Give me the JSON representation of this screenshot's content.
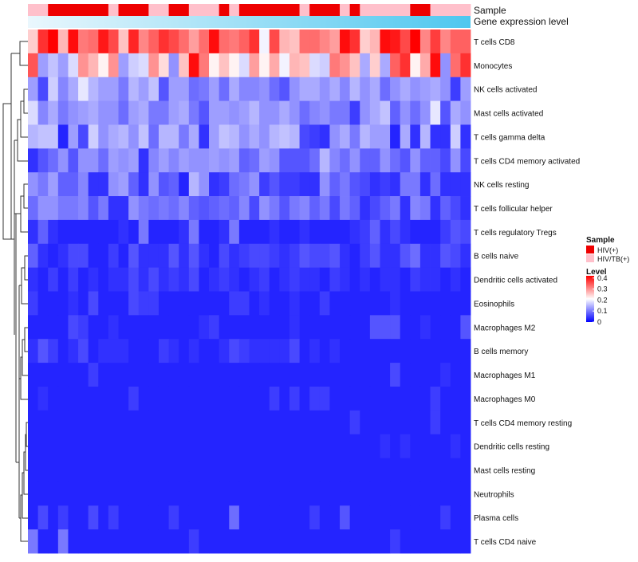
{
  "chart_data": {
    "type": "heatmap",
    "annotation_labels": [
      "Sample",
      "Gene expression level"
    ],
    "rows": [
      "T cells CD8",
      "Monocytes",
      "NK cells activated",
      "Mast cells activated",
      "T cells gamma delta",
      "T cells CD4 memory activated",
      "NK cells resting",
      "T cells follicular helper",
      "T cells regulatory  Tregs",
      "B cells naive",
      "Dendritic cells activated",
      "Eosinophils",
      "Macrophages M2",
      "B cells memory",
      "Macrophages M1",
      "Macrophages M0",
      "T cells CD4 memory resting",
      "Dendritic cells resting",
      "Mast cells resting",
      "Neutrophils",
      "Plasma cells",
      "T cells CD4 naive"
    ],
    "n_columns": 44,
    "sample_groups": [
      "HIV/TB(+)",
      "HIV/TB(+)",
      "HIV(+)",
      "HIV(+)",
      "HIV(+)",
      "HIV(+)",
      "HIV(+)",
      "HIV(+)",
      "HIV/TB(+)",
      "HIV(+)",
      "HIV(+)",
      "HIV(+)",
      "HIV/TB(+)",
      "HIV/TB(+)",
      "HIV(+)",
      "HIV(+)",
      "HIV/TB(+)",
      "HIV/TB(+)",
      "HIV/TB(+)",
      "HIV(+)",
      "HIV/TB(+)",
      "HIV(+)",
      "HIV(+)",
      "HIV(+)",
      "HIV(+)",
      "HIV(+)",
      "HIV(+)",
      "HIV/TB(+)",
      "HIV(+)",
      "HIV(+)",
      "HIV(+)",
      "HIV/TB(+)",
      "HIV(+)",
      "HIV/TB(+)",
      "HIV/TB(+)",
      "HIV/TB(+)",
      "HIV/TB(+)",
      "HIV/TB(+)",
      "HIV(+)",
      "HIV(+)",
      "HIV/TB(+)",
      "HIV/TB(+)",
      "HIV/TB(+)",
      "HIV/TB(+)"
    ],
    "values": [
      [
        0.25,
        0.38,
        0.42,
        0.27,
        0.41,
        0.32,
        0.33,
        0.4,
        0.36,
        0.26,
        0.39,
        0.31,
        0.34,
        0.38,
        0.36,
        0.33,
        0.29,
        0.33,
        0.41,
        0.33,
        0.32,
        0.34,
        0.38,
        0.2,
        0.36,
        0.27,
        0.26,
        0.33,
        0.33,
        0.31,
        0.29,
        0.41,
        0.38,
        0.25,
        0.27,
        0.41,
        0.4,
        0.36,
        0.42,
        0.31,
        0.37,
        0.31,
        0.34,
        0.34
      ],
      [
        0.35,
        0.13,
        0.16,
        0.13,
        0.18,
        0.3,
        0.27,
        0.22,
        0.3,
        0.13,
        0.17,
        0.18,
        0.3,
        0.24,
        0.12,
        0.26,
        0.41,
        0.32,
        0.22,
        0.26,
        0.22,
        0.18,
        0.29,
        0.22,
        0.28,
        0.2,
        0.27,
        0.26,
        0.18,
        0.17,
        0.32,
        0.3,
        0.26,
        0.14,
        0.25,
        0.14,
        0.34,
        0.38,
        0.22,
        0.28,
        0.41,
        0.12,
        0.33,
        0.38
      ],
      [
        0.13,
        0.06,
        0.17,
        0.11,
        0.14,
        0.19,
        0.15,
        0.13,
        0.13,
        0.1,
        0.15,
        0.13,
        0.16,
        0.07,
        0.13,
        0.13,
        0.09,
        0.1,
        0.13,
        0.09,
        0.14,
        0.11,
        0.11,
        0.12,
        0.09,
        0.07,
        0.12,
        0.14,
        0.14,
        0.12,
        0.14,
        0.11,
        0.15,
        0.12,
        0.14,
        0.09,
        0.12,
        0.14,
        0.12,
        0.13,
        0.14,
        0.12,
        0.05,
        0.13
      ],
      [
        0.18,
        0.11,
        0.14,
        0.1,
        0.12,
        0.13,
        0.14,
        0.12,
        0.12,
        0.09,
        0.13,
        0.14,
        0.1,
        0.1,
        0.13,
        0.14,
        0.1,
        0.07,
        0.13,
        0.13,
        0.12,
        0.13,
        0.15,
        0.12,
        0.12,
        0.14,
        0.12,
        0.09,
        0.11,
        0.12,
        0.1,
        0.1,
        0.05,
        0.12,
        0.14,
        0.16,
        0.08,
        0.12,
        0.09,
        0.12,
        0.19,
        0.07,
        0.14,
        0.12
      ],
      [
        0.15,
        0.16,
        0.16,
        0.03,
        0.13,
        0.06,
        0.17,
        0.12,
        0.14,
        0.15,
        0.12,
        0.16,
        0.09,
        0.15,
        0.15,
        0.1,
        0.14,
        0.04,
        0.13,
        0.16,
        0.15,
        0.12,
        0.14,
        0.12,
        0.15,
        0.16,
        0.15,
        0.06,
        0.05,
        0.04,
        0.12,
        0.14,
        0.1,
        0.15,
        0.13,
        0.13,
        0.03,
        0.14,
        0.04,
        0.15,
        0.04,
        0.04,
        0.17,
        0.04
      ],
      [
        0.04,
        0.07,
        0.09,
        0.12,
        0.07,
        0.12,
        0.12,
        0.09,
        0.13,
        0.12,
        0.13,
        0.04,
        0.11,
        0.13,
        0.11,
        0.13,
        0.12,
        0.12,
        0.13,
        0.12,
        0.13,
        0.08,
        0.09,
        0.13,
        0.12,
        0.07,
        0.07,
        0.07,
        0.09,
        0.15,
        0.11,
        0.09,
        0.12,
        0.08,
        0.08,
        0.12,
        0.09,
        0.07,
        0.12,
        0.08,
        0.08,
        0.06,
        0.12,
        0.06
      ],
      [
        0.12,
        0.1,
        0.13,
        0.08,
        0.08,
        0.11,
        0.04,
        0.04,
        0.12,
        0.13,
        0.08,
        0.04,
        0.12,
        0.07,
        0.08,
        0.03,
        0.15,
        0.12,
        0.04,
        0.05,
        0.09,
        0.1,
        0.12,
        0.05,
        0.07,
        0.05,
        0.05,
        0.04,
        0.04,
        0.12,
        0.08,
        0.1,
        0.07,
        0.06,
        0.04,
        0.05,
        0.04,
        0.1,
        0.1,
        0.04,
        0.09,
        0.04,
        0.04,
        0.04
      ],
      [
        0.09,
        0.12,
        0.12,
        0.1,
        0.1,
        0.11,
        0.07,
        0.1,
        0.04,
        0.04,
        0.12,
        0.1,
        0.09,
        0.1,
        0.09,
        0.11,
        0.08,
        0.07,
        0.08,
        0.09,
        0.08,
        0.11,
        0.06,
        0.12,
        0.1,
        0.07,
        0.1,
        0.11,
        0.08,
        0.1,
        0.06,
        0.1,
        0.08,
        0.04,
        0.06,
        0.08,
        0.1,
        0.04,
        0.11,
        0.1,
        0.04,
        0.08,
        0.06,
        0.04
      ],
      [
        0.04,
        0.08,
        0.04,
        0.03,
        0.03,
        0.03,
        0.03,
        0.03,
        0.03,
        0.04,
        0.03,
        0.1,
        0.03,
        0.03,
        0.03,
        0.04,
        0.1,
        0.03,
        0.03,
        0.04,
        0.1,
        0.03,
        0.03,
        0.03,
        0.04,
        0.03,
        0.03,
        0.04,
        0.03,
        0.03,
        0.03,
        0.03,
        0.04,
        0.05,
        0.08,
        0.04,
        0.06,
        0.04,
        0.03,
        0.03,
        0.03,
        0.05,
        0.07,
        0.06
      ],
      [
        0.08,
        0.04,
        0.03,
        0.04,
        0.06,
        0.06,
        0.03,
        0.03,
        0.05,
        0.03,
        0.07,
        0.04,
        0.04,
        0.04,
        0.07,
        0.04,
        0.07,
        0.04,
        0.03,
        0.06,
        0.04,
        0.05,
        0.06,
        0.06,
        0.05,
        0.04,
        0.05,
        0.07,
        0.06,
        0.06,
        0.07,
        0.04,
        0.03,
        0.05,
        0.07,
        0.04,
        0.04,
        0.07,
        0.09,
        0.04,
        0.04,
        0.07,
        0.06,
        0.04
      ],
      [
        0.04,
        0.03,
        0.05,
        0.03,
        0.05,
        0.03,
        0.04,
        0.03,
        0.04,
        0.04,
        0.06,
        0.04,
        0.06,
        0.04,
        0.05,
        0.04,
        0.06,
        0.03,
        0.04,
        0.05,
        0.04,
        0.03,
        0.04,
        0.05,
        0.03,
        0.04,
        0.05,
        0.04,
        0.04,
        0.03,
        0.05,
        0.04,
        0.03,
        0.04,
        0.03,
        0.04,
        0.04,
        0.03,
        0.05,
        0.04,
        0.04,
        0.03,
        0.04,
        0.03
      ],
      [
        0.05,
        0.03,
        0.03,
        0.03,
        0.04,
        0.03,
        0.06,
        0.03,
        0.03,
        0.03,
        0.06,
        0.05,
        0.05,
        0.03,
        0.03,
        0.03,
        0.03,
        0.03,
        0.03,
        0.03,
        0.05,
        0.05,
        0.03,
        0.04,
        0.03,
        0.03,
        0.04,
        0.03,
        0.03,
        0.05,
        0.03,
        0.03,
        0.03,
        0.03,
        0.03,
        0.03,
        0.04,
        0.03,
        0.03,
        0.03,
        0.03,
        0.03,
        0.03,
        0.03
      ],
      [
        0.03,
        0.03,
        0.03,
        0.03,
        0.06,
        0.05,
        0.03,
        0.03,
        0.04,
        0.03,
        0.03,
        0.03,
        0.03,
        0.03,
        0.03,
        0.03,
        0.03,
        0.04,
        0.05,
        0.03,
        0.03,
        0.03,
        0.03,
        0.03,
        0.03,
        0.03,
        0.04,
        0.03,
        0.03,
        0.03,
        0.03,
        0.03,
        0.03,
        0.03,
        0.07,
        0.07,
        0.07,
        0.03,
        0.03,
        0.04,
        0.03,
        0.03,
        0.03,
        0.07
      ],
      [
        0.04,
        0.07,
        0.05,
        0.03,
        0.04,
        0.06,
        0.03,
        0.04,
        0.04,
        0.04,
        0.03,
        0.03,
        0.03,
        0.05,
        0.04,
        0.03,
        0.04,
        0.03,
        0.03,
        0.04,
        0.06,
        0.05,
        0.04,
        0.04,
        0.04,
        0.04,
        0.06,
        0.03,
        0.04,
        0.03,
        0.04,
        0.03,
        0.03,
        0.03,
        0.03,
        0.03,
        0.03,
        0.03,
        0.03,
        0.03,
        0.03,
        0.03,
        0.03,
        0.03
      ],
      [
        0.03,
        0.03,
        0.03,
        0.03,
        0.03,
        0.03,
        0.05,
        0.03,
        0.03,
        0.03,
        0.03,
        0.03,
        0.03,
        0.03,
        0.03,
        0.03,
        0.03,
        0.03,
        0.03,
        0.03,
        0.03,
        0.03,
        0.03,
        0.03,
        0.03,
        0.03,
        0.03,
        0.03,
        0.03,
        0.03,
        0.03,
        0.03,
        0.03,
        0.03,
        0.03,
        0.03,
        0.06,
        0.03,
        0.03,
        0.03,
        0.03,
        0.04,
        0.03,
        0.03
      ],
      [
        0.03,
        0.04,
        0.03,
        0.03,
        0.03,
        0.03,
        0.03,
        0.03,
        0.03,
        0.03,
        0.05,
        0.03,
        0.03,
        0.03,
        0.03,
        0.03,
        0.03,
        0.03,
        0.03,
        0.03,
        0.03,
        0.03,
        0.03,
        0.03,
        0.05,
        0.03,
        0.05,
        0.03,
        0.05,
        0.05,
        0.03,
        0.03,
        0.03,
        0.03,
        0.03,
        0.03,
        0.03,
        0.03,
        0.03,
        0.03,
        0.05,
        0.03,
        0.03,
        0.03
      ],
      [
        0.03,
        0.03,
        0.03,
        0.03,
        0.03,
        0.03,
        0.03,
        0.03,
        0.03,
        0.03,
        0.03,
        0.03,
        0.03,
        0.03,
        0.03,
        0.03,
        0.03,
        0.03,
        0.03,
        0.03,
        0.03,
        0.03,
        0.03,
        0.03,
        0.03,
        0.03,
        0.03,
        0.03,
        0.03,
        0.03,
        0.03,
        0.03,
        0.05,
        0.03,
        0.03,
        0.03,
        0.03,
        0.03,
        0.03,
        0.03,
        0.05,
        0.03,
        0.03,
        0.03
      ],
      [
        0.03,
        0.03,
        0.03,
        0.03,
        0.03,
        0.03,
        0.03,
        0.03,
        0.03,
        0.03,
        0.03,
        0.03,
        0.03,
        0.03,
        0.03,
        0.03,
        0.03,
        0.03,
        0.03,
        0.03,
        0.03,
        0.03,
        0.03,
        0.03,
        0.03,
        0.03,
        0.03,
        0.03,
        0.03,
        0.03,
        0.03,
        0.03,
        0.03,
        0.03,
        0.03,
        0.04,
        0.03,
        0.04,
        0.03,
        0.03,
        0.03,
        0.03,
        0.04,
        0.03
      ],
      [
        0.03,
        0.03,
        0.03,
        0.03,
        0.03,
        0.03,
        0.03,
        0.03,
        0.03,
        0.03,
        0.03,
        0.03,
        0.03,
        0.03,
        0.03,
        0.03,
        0.03,
        0.03,
        0.03,
        0.03,
        0.03,
        0.03,
        0.03,
        0.03,
        0.03,
        0.03,
        0.03,
        0.03,
        0.03,
        0.03,
        0.03,
        0.03,
        0.03,
        0.03,
        0.03,
        0.03,
        0.03,
        0.03,
        0.03,
        0.03,
        0.03,
        0.03,
        0.03,
        0.03
      ],
      [
        0.03,
        0.03,
        0.03,
        0.03,
        0.03,
        0.03,
        0.03,
        0.03,
        0.03,
        0.03,
        0.03,
        0.03,
        0.03,
        0.03,
        0.03,
        0.03,
        0.03,
        0.03,
        0.03,
        0.03,
        0.03,
        0.03,
        0.03,
        0.03,
        0.03,
        0.03,
        0.03,
        0.03,
        0.03,
        0.03,
        0.03,
        0.03,
        0.03,
        0.03,
        0.03,
        0.03,
        0.03,
        0.03,
        0.03,
        0.03,
        0.03,
        0.03,
        0.03,
        0.03
      ],
      [
        0.03,
        0.06,
        0.03,
        0.05,
        0.03,
        0.03,
        0.06,
        0.03,
        0.05,
        0.03,
        0.03,
        0.03,
        0.03,
        0.03,
        0.05,
        0.03,
        0.03,
        0.03,
        0.03,
        0.03,
        0.09,
        0.03,
        0.03,
        0.03,
        0.03,
        0.03,
        0.03,
        0.03,
        0.05,
        0.03,
        0.03,
        0.07,
        0.03,
        0.03,
        0.03,
        0.03,
        0.03,
        0.03,
        0.03,
        0.03,
        0.03,
        0.05,
        0.03,
        0.03
      ],
      [
        0.1,
        0.03,
        0.03,
        0.1,
        0.03,
        0.03,
        0.03,
        0.03,
        0.03,
        0.03,
        0.03,
        0.03,
        0.03,
        0.03,
        0.03,
        0.03,
        0.05,
        0.03,
        0.03,
        0.03,
        0.03,
        0.03,
        0.03,
        0.03,
        0.03,
        0.03,
        0.03,
        0.03,
        0.03,
        0.03,
        0.03,
        0.03,
        0.03,
        0.03,
        0.03,
        0.03,
        0.05,
        0.03,
        0.03,
        0.03,
        0.03,
        0.03,
        0.03,
        0.03
      ]
    ],
    "expression_gradient": {
      "from": "#eaf7fd",
      "to": "#4ec7ef"
    },
    "legend": {
      "sample_title": "Sample",
      "sample_items": [
        {
          "label": "HIV(+)",
          "color": "#ee0000"
        },
        {
          "label": "HIV/TB(+)",
          "color": "#ffc0cb"
        }
      ],
      "level_title": "Level",
      "level_ticks": [
        "0.4",
        "0.3",
        "0.2",
        "0.1",
        "0"
      ],
      "level_tick_values": [
        0.4,
        0.3,
        0.2,
        0.1,
        0.0
      ],
      "color_low": "#0000ff",
      "color_mid": "#ffffff",
      "color_high": "#ff0000",
      "range": [
        0,
        0.42
      ],
      "midpoint": 0.21,
      "position": "right"
    },
    "dendrogram": "rows-left"
  }
}
